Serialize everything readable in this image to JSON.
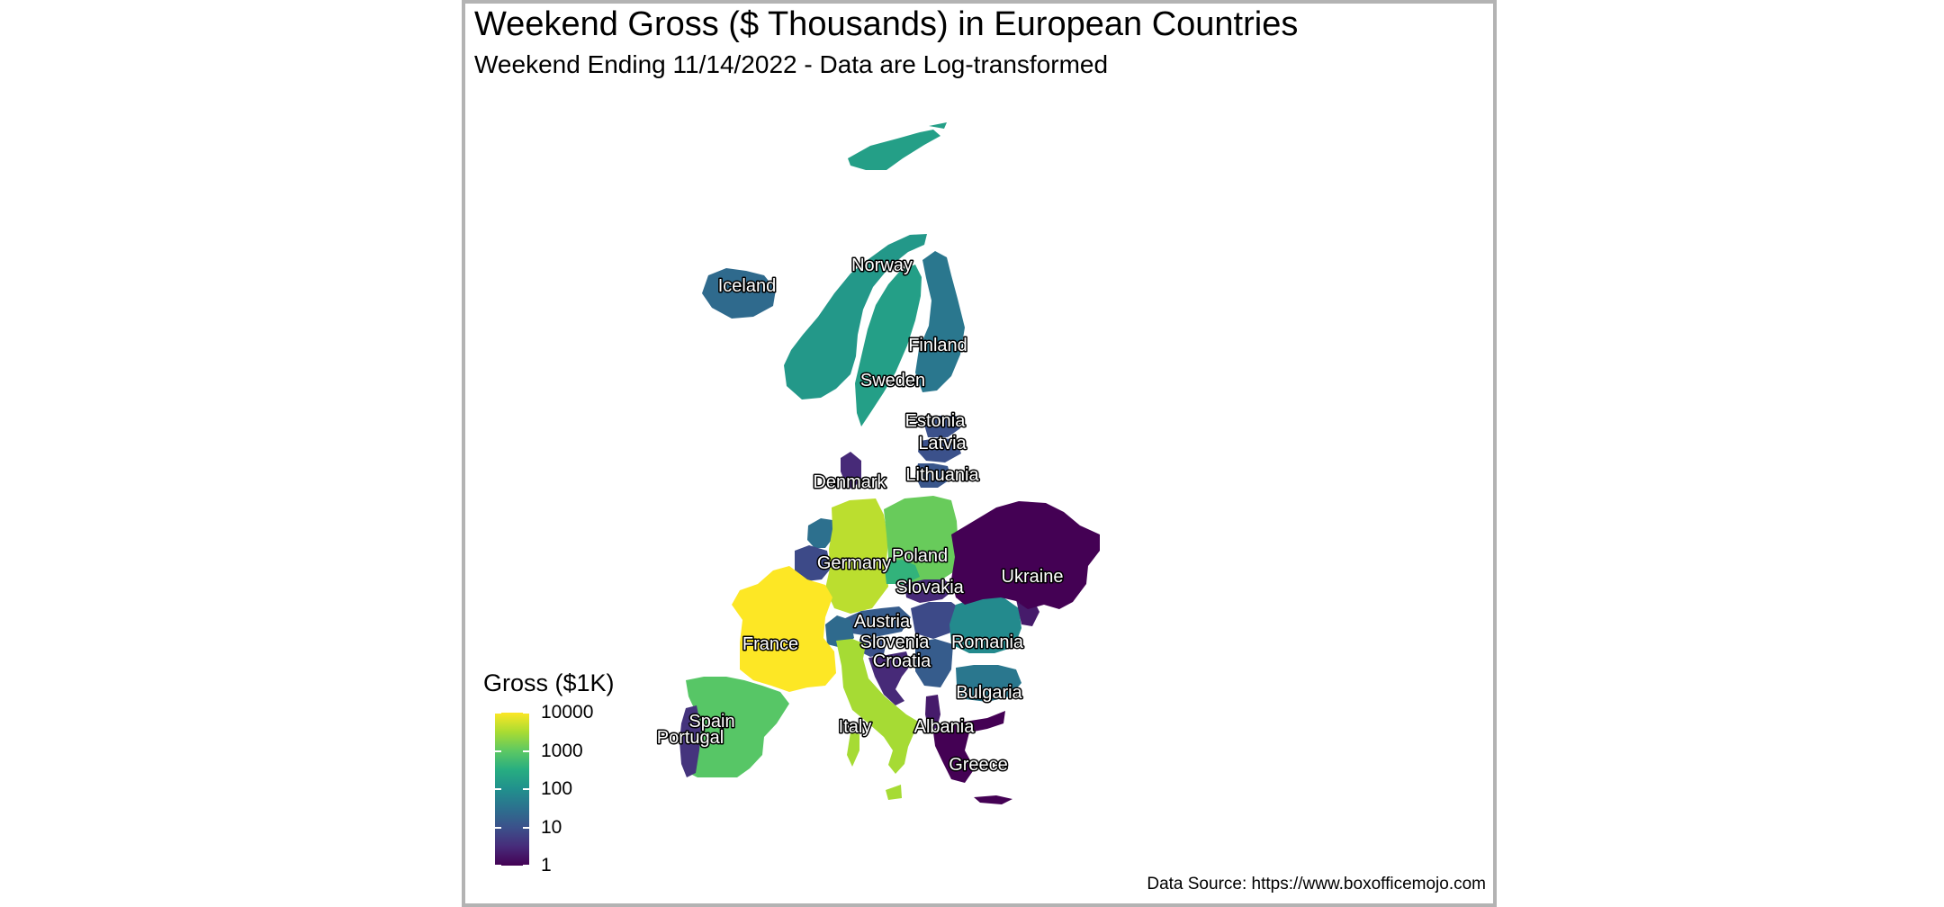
{
  "title": "Weekend Gross ($ Thousands) in European Countries",
  "subtitle": "Weekend Ending 11/14/2022 - Data are Log-transformed",
  "caption": "Data Source: https://www.boxofficemojo.com",
  "legend": {
    "title": "Gross ($1K)",
    "ticks": [
      "10000",
      "1000",
      "100",
      "10",
      "1"
    ],
    "scale": "log10",
    "palette": "viridis",
    "colors": [
      "#440154",
      "#3b528b",
      "#21908c",
      "#5dc863",
      "#fde725"
    ]
  },
  "chart_data": {
    "type": "choropleth",
    "title": "Weekend Gross ($ Thousands) in European Countries",
    "subtitle": "Weekend Ending 11/14/2022 - Data are Log-transformed",
    "legend_title": "Gross ($1K)",
    "scale": "log10",
    "range": [
      1,
      10000
    ],
    "legend_position": "bottom-left",
    "countries": [
      {
        "name": "Iceland",
        "value": 25
      },
      {
        "name": "Norway",
        "value": 140
      },
      {
        "name": "Finland",
        "value": 40
      },
      {
        "name": "Sweden",
        "value": 180
      },
      {
        "name": "Estonia",
        "value": 10
      },
      {
        "name": "Latvia",
        "value": 10
      },
      {
        "name": "Lithuania",
        "value": 12
      },
      {
        "name": "Denmark",
        "value": 3
      },
      {
        "name": "Germany",
        "value": 4000
      },
      {
        "name": "Poland",
        "value": 1200
      },
      {
        "name": "Ukraine",
        "value": 1
      },
      {
        "name": "Slovakia",
        "value": 3
      },
      {
        "name": "Austria",
        "value": 15
      },
      {
        "name": "Slovenia",
        "value": 10
      },
      {
        "name": "Croatia",
        "value": 3
      },
      {
        "name": "Romania",
        "value": 80
      },
      {
        "name": "Bulgaria",
        "value": 40
      },
      {
        "name": "Albania",
        "value": 2
      },
      {
        "name": "Greece",
        "value": 1
      },
      {
        "name": "France",
        "value": 10000
      },
      {
        "name": "Spain",
        "value": 900
      },
      {
        "name": "Portugal",
        "value": 4
      },
      {
        "name": "Italy",
        "value": 3000
      }
    ],
    "unlabeled_regions": [
      {
        "name": "Svalbard",
        "value": 180
      },
      {
        "name": "Belgium",
        "value": 8
      },
      {
        "name": "Netherlands",
        "value": 30
      },
      {
        "name": "Switzerland",
        "value": 25
      },
      {
        "name": "Czechia",
        "value": 400
      },
      {
        "name": "Hungary",
        "value": 8
      },
      {
        "name": "Serbia",
        "value": 15
      },
      {
        "name": "Moldova",
        "value": 2
      }
    ]
  }
}
